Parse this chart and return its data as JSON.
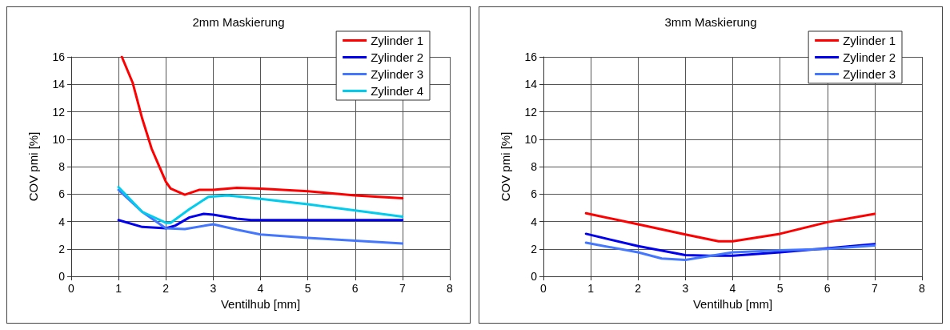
{
  "chart_data": [
    {
      "type": "line",
      "title": "2mm Maskierung",
      "xlabel": "Ventilhub [mm]",
      "ylabel": "COV pmi [%]",
      "xlim": [
        0,
        8
      ],
      "xticks": [
        0,
        1,
        2,
        3,
        4,
        5,
        6,
        7,
        8
      ],
      "ylim": [
        0,
        16
      ],
      "yticks": [
        0,
        2,
        4,
        6,
        8,
        10,
        12,
        14,
        16
      ],
      "grid": true,
      "legend": "top right",
      "marker": "none",
      "line_style": "solid",
      "series": [
        {
          "name": "Zylinder 1",
          "color": "#ff0000",
          "x": [
            1.07,
            1.3,
            1.5,
            1.7,
            1.85,
            2.0,
            2.1,
            2.4,
            2.7,
            3.0,
            3.5,
            4.0,
            5.0,
            6.0,
            7.0
          ],
          "values": [
            16,
            14.1,
            11.5,
            9.3,
            8.1,
            6.9,
            6.4,
            5.95,
            6.3,
            6.3,
            6.45,
            6.4,
            6.2,
            5.9,
            5.7
          ]
        },
        {
          "name": "Zylinder 2",
          "color": "#0000ee",
          "x": [
            1,
            1.5,
            2,
            2.2,
            2.5,
            2.8,
            3.0,
            3.5,
            3.8,
            7
          ],
          "values": [
            4.1,
            3.6,
            3.5,
            3.7,
            4.3,
            4.55,
            4.5,
            4.2,
            4.1,
            4.1
          ]
        },
        {
          "name": "Zylinder 3",
          "color": "#4477ff",
          "x": [
            1,
            1.5,
            2,
            2.4,
            3,
            3.5,
            4,
            5,
            6,
            7
          ],
          "values": [
            6.3,
            4.7,
            3.5,
            3.45,
            3.8,
            3.4,
            3.05,
            2.8,
            2.6,
            2.4
          ]
        },
        {
          "name": "Zylinder 4",
          "color": "#00ccee",
          "x": [
            1,
            1.5,
            2,
            2.1,
            2.5,
            2.9,
            3.3,
            3.6,
            4,
            5,
            6,
            7
          ],
          "values": [
            6.5,
            4.7,
            3.9,
            3.9,
            4.9,
            5.8,
            5.9,
            5.8,
            5.65,
            5.25,
            4.8,
            4.35
          ]
        }
      ]
    },
    {
      "type": "line",
      "title": "3mm Maskierung",
      "xlabel": "Ventilhub [mm]",
      "ylabel": "COV pmi [%]",
      "xlim": [
        0,
        8
      ],
      "xticks": [
        0,
        1,
        2,
        3,
        4,
        5,
        6,
        7,
        8
      ],
      "ylim": [
        0,
        16
      ],
      "yticks": [
        0,
        2,
        4,
        6,
        8,
        10,
        12,
        14,
        16
      ],
      "grid": true,
      "legend": "top right",
      "marker": "none",
      "line_style": "solid",
      "series": [
        {
          "name": "Zylinder 1",
          "color": "#ff0000",
          "x": [
            0.9,
            2,
            3,
            3.7,
            4,
            5,
            6,
            7
          ],
          "values": [
            4.6,
            3.8,
            3.05,
            2.55,
            2.55,
            3.1,
            3.95,
            4.55
          ]
        },
        {
          "name": "Zylinder 2",
          "color": "#0000ee",
          "x": [
            0.9,
            2,
            3,
            3.5,
            4,
            5,
            6,
            7
          ],
          "values": [
            3.1,
            2.2,
            1.55,
            1.5,
            1.5,
            1.75,
            2.05,
            2.35
          ]
        },
        {
          "name": "Zylinder 3",
          "color": "#4477ff",
          "x": [
            0.9,
            2,
            2.5,
            3,
            4,
            5,
            6,
            7
          ],
          "values": [
            2.45,
            1.75,
            1.3,
            1.2,
            1.75,
            1.9,
            2.0,
            2.25
          ]
        }
      ]
    }
  ]
}
